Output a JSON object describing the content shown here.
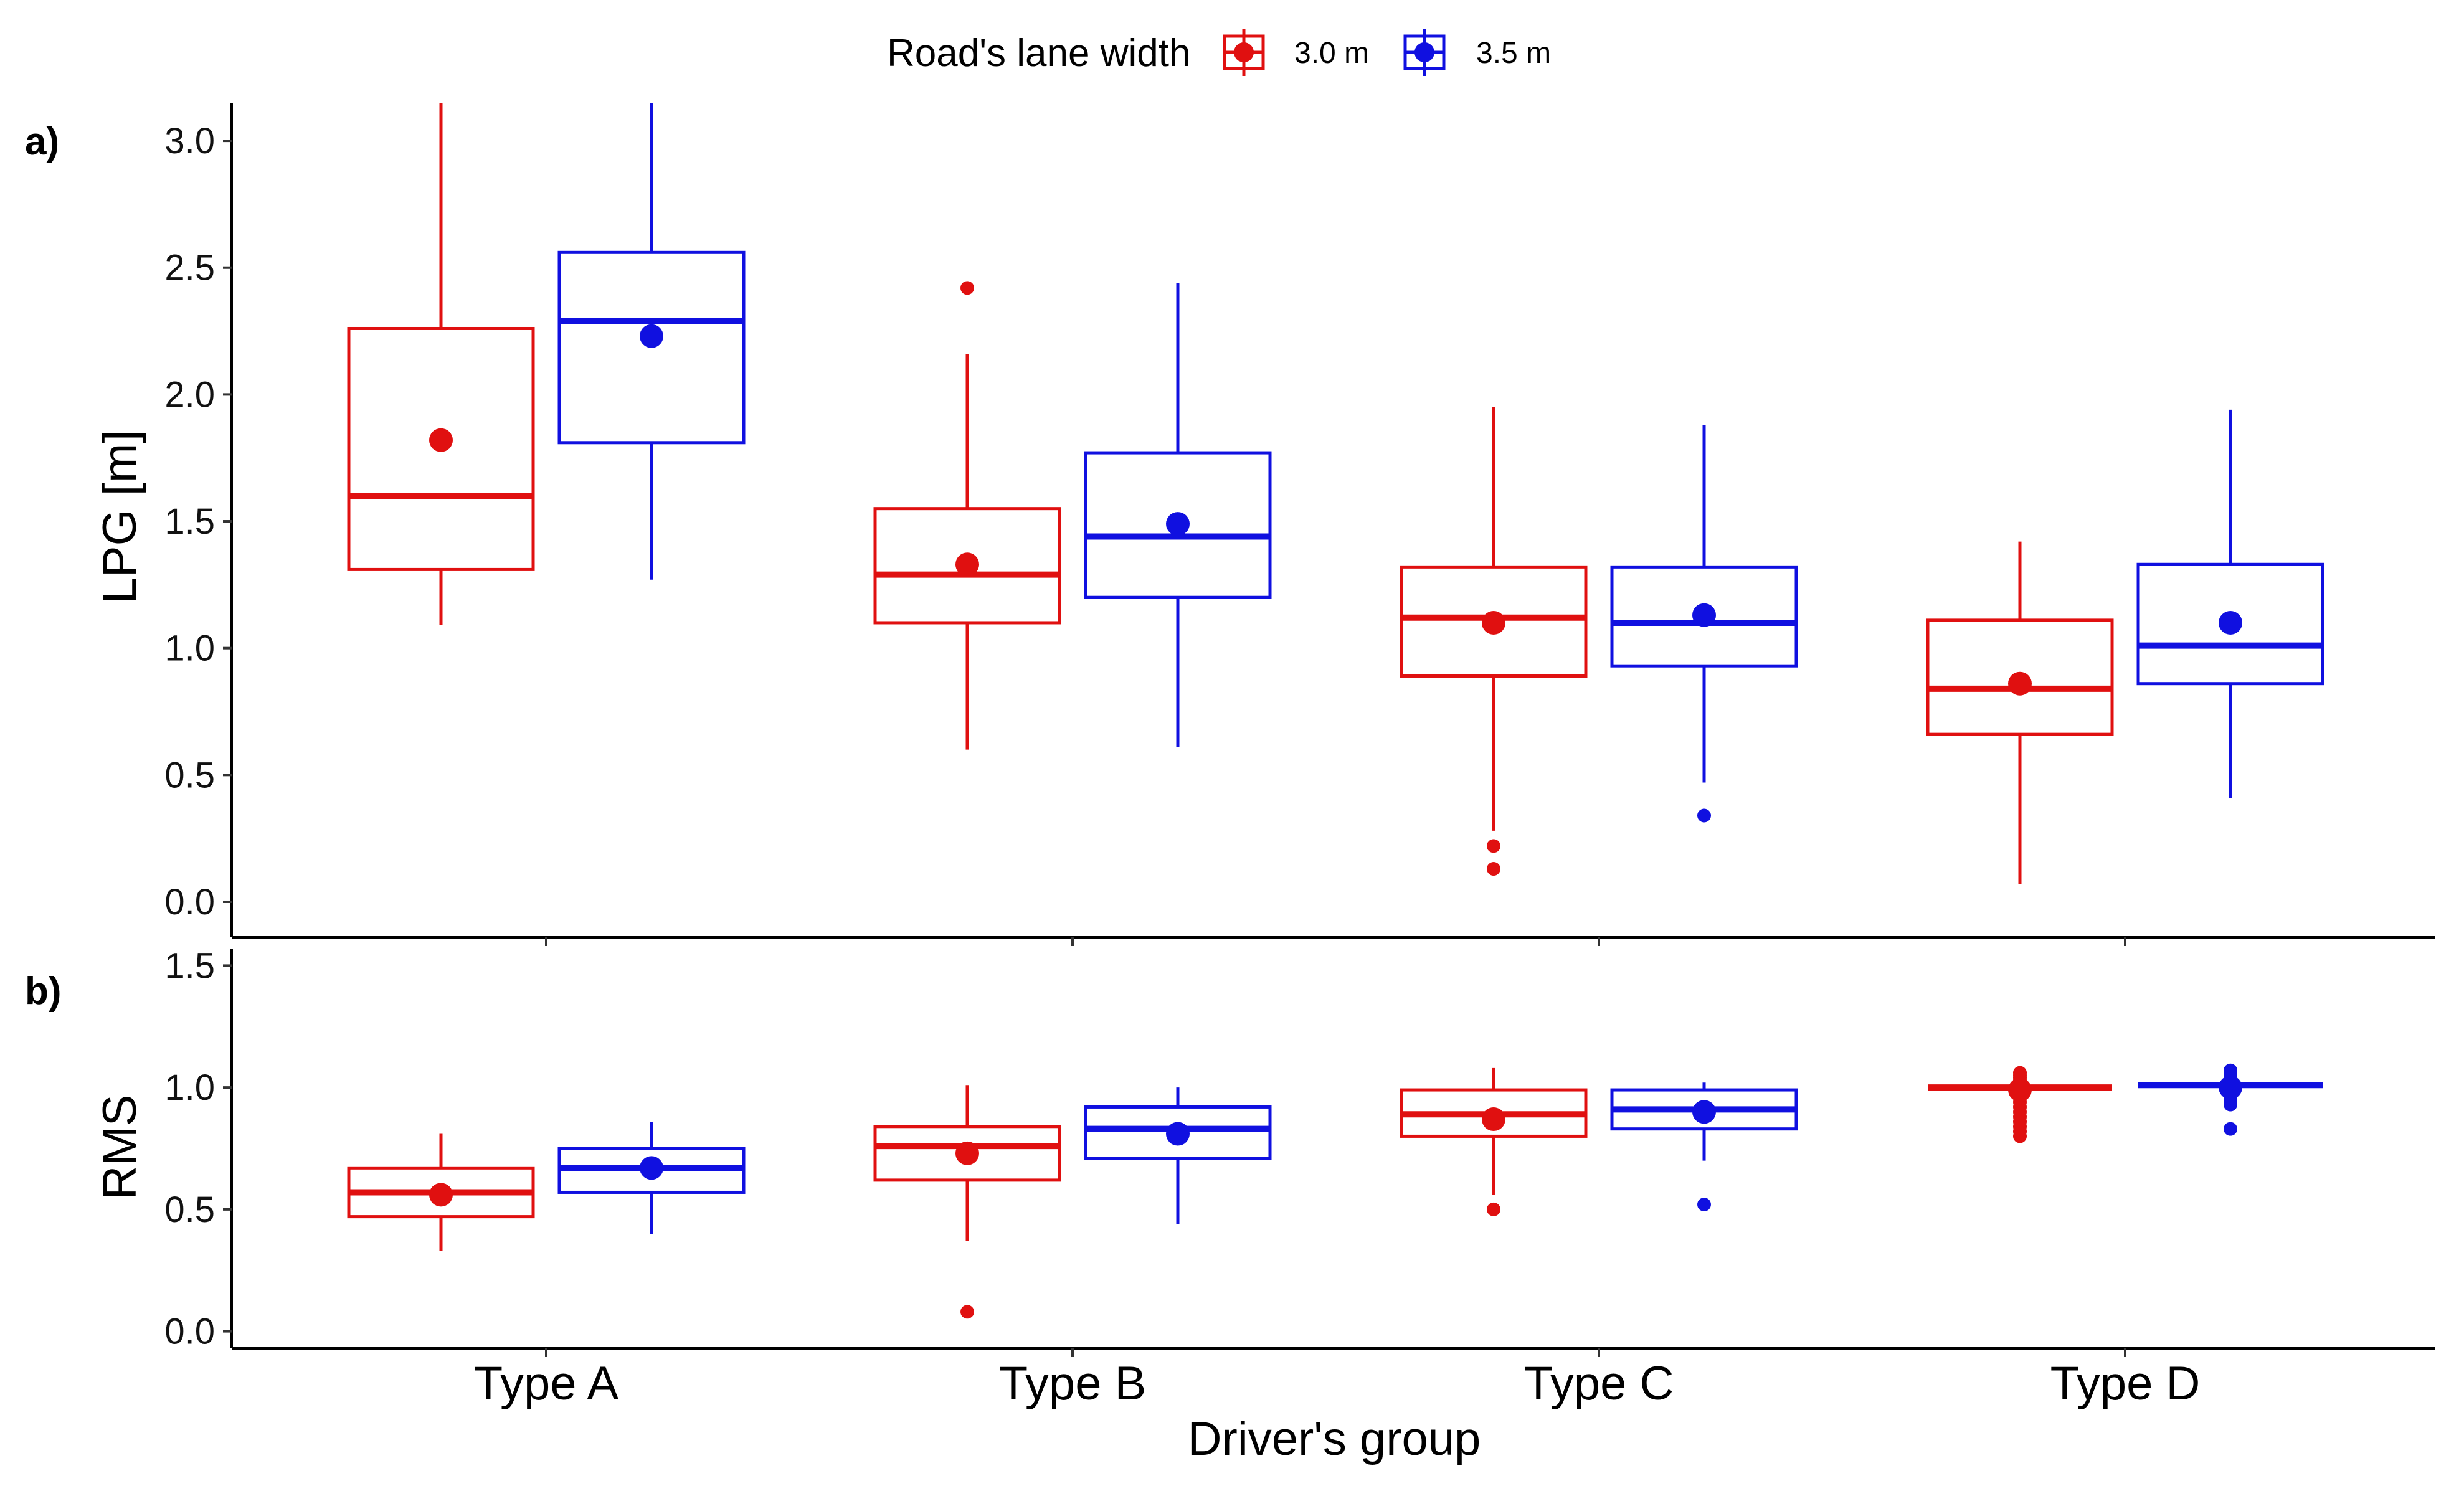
{
  "chart_data": {
    "type": "boxplot",
    "legend": {
      "title": "Road's lane width",
      "position": "top",
      "entries": [
        {
          "name": "3.0 m",
          "color": "#e01010"
        },
        {
          "name": "3.5 m",
          "color": "#1010e0"
        }
      ]
    },
    "categories": [
      "Type A",
      "Type B",
      "Type C",
      "Type D"
    ],
    "xlabel": "Driver's group",
    "panels": [
      {
        "label": "a)",
        "ylabel": "LPG [m]",
        "ylim": [
          -0.14,
          3.15
        ],
        "ticks": [
          0.0,
          0.5,
          1.0,
          1.5,
          2.0,
          2.5,
          3.0
        ],
        "tick_labels": [
          "0.0",
          "0.5",
          "1.0",
          "1.5",
          "2.0",
          "2.5",
          "3.0"
        ],
        "series": [
          {
            "name": "3.0 m",
            "boxes": [
              {
                "category": "Type A",
                "whisker_low": 1.09,
                "q1": 1.31,
                "median": 1.6,
                "q3": 2.26,
                "whisker_high": 3.15,
                "mean": 1.82,
                "outliers": []
              },
              {
                "category": "Type B",
                "whisker_low": 0.6,
                "q1": 1.1,
                "median": 1.29,
                "q3": 1.55,
                "whisker_high": 2.16,
                "mean": 1.33,
                "outliers": [
                  2.42
                ]
              },
              {
                "category": "Type C",
                "whisker_low": 0.28,
                "q1": 0.89,
                "median": 1.12,
                "q3": 1.32,
                "whisker_high": 1.95,
                "mean": 1.1,
                "outliers": [
                  0.22,
                  0.13
                ]
              },
              {
                "category": "Type D",
                "whisker_low": 0.07,
                "q1": 0.66,
                "median": 0.84,
                "q3": 1.11,
                "whisker_high": 1.42,
                "mean": 0.86,
                "outliers": []
              }
            ]
          },
          {
            "name": "3.5 m",
            "boxes": [
              {
                "category": "Type A",
                "whisker_low": 1.27,
                "q1": 1.81,
                "median": 2.29,
                "q3": 2.56,
                "whisker_high": 3.15,
                "mean": 2.23,
                "outliers": []
              },
              {
                "category": "Type B",
                "whisker_low": 0.61,
                "q1": 1.2,
                "median": 1.44,
                "q3": 1.77,
                "whisker_high": 2.44,
                "mean": 1.49,
                "outliers": []
              },
              {
                "category": "Type C",
                "whisker_low": 0.47,
                "q1": 0.93,
                "median": 1.1,
                "q3": 1.32,
                "whisker_high": 1.88,
                "mean": 1.13,
                "outliers": [
                  0.34
                ]
              },
              {
                "category": "Type D",
                "whisker_low": 0.41,
                "q1": 0.86,
                "median": 1.01,
                "q3": 1.33,
                "whisker_high": 1.94,
                "mean": 1.1,
                "outliers": []
              }
            ]
          }
        ]
      },
      {
        "label": "b)",
        "ylabel": "RMS",
        "ylim": [
          -0.07,
          1.57
        ],
        "ticks": [
          0.0,
          0.5,
          1.0,
          1.5
        ],
        "tick_labels": [
          "0.0",
          "0.5",
          "1.0",
          "1.5"
        ],
        "series": [
          {
            "name": "3.0 m",
            "boxes": [
              {
                "category": "Type A",
                "whisker_low": 0.33,
                "q1": 0.47,
                "median": 0.57,
                "q3": 0.67,
                "whisker_high": 0.81,
                "mean": 0.56,
                "outliers": []
              },
              {
                "category": "Type B",
                "whisker_low": 0.37,
                "q1": 0.62,
                "median": 0.76,
                "q3": 0.84,
                "whisker_high": 1.01,
                "mean": 0.73,
                "outliers": [
                  0.08
                ]
              },
              {
                "category": "Type C",
                "whisker_low": 0.56,
                "q1": 0.8,
                "median": 0.89,
                "q3": 0.99,
                "whisker_high": 1.08,
                "mean": 0.87,
                "outliers": [
                  0.5
                ]
              },
              {
                "category": "Type D",
                "whisker_low": 1.0,
                "q1": 1.0,
                "median": 1.0,
                "q3": 1.0,
                "whisker_high": 1.0,
                "mean": 0.99,
                "outliers": [
                  1.06,
                  1.05,
                  1.04,
                  1.03,
                  1.02,
                  0.98,
                  0.96,
                  0.94,
                  0.92,
                  0.9,
                  0.88,
                  0.86,
                  0.84,
                  0.82,
                  0.8
                ]
              }
            ]
          },
          {
            "name": "3.5 m",
            "boxes": [
              {
                "category": "Type A",
                "whisker_low": 0.4,
                "q1": 0.57,
                "median": 0.67,
                "q3": 0.75,
                "whisker_high": 0.86,
                "mean": 0.67,
                "outliers": []
              },
              {
                "category": "Type B",
                "whisker_low": 0.44,
                "q1": 0.71,
                "median": 0.83,
                "q3": 0.92,
                "whisker_high": 1.0,
                "mean": 0.81,
                "outliers": []
              },
              {
                "category": "Type C",
                "whisker_low": 0.7,
                "q1": 0.83,
                "median": 0.91,
                "q3": 0.99,
                "whisker_high": 1.02,
                "mean": 0.9,
                "outliers": [
                  0.52
                ]
              },
              {
                "category": "Type D",
                "whisker_low": 1.01,
                "q1": 1.01,
                "median": 1.01,
                "q3": 1.01,
                "whisker_high": 1.01,
                "mean": 1.0,
                "outliers": [
                  1.07,
                  1.05,
                  1.03,
                  0.99,
                  0.97,
                  0.95,
                  0.93,
                  0.83
                ]
              }
            ]
          }
        ]
      }
    ]
  }
}
